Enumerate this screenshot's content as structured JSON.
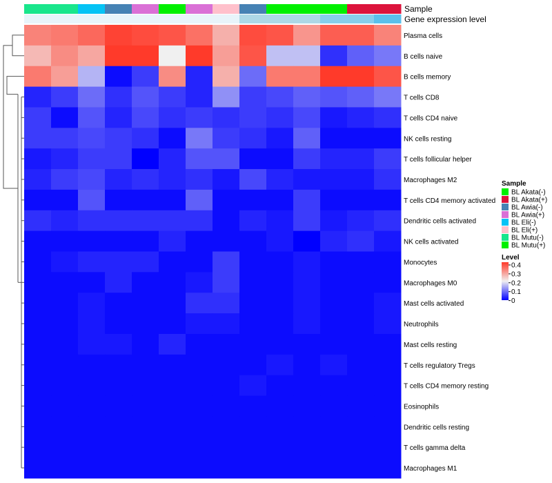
{
  "chart_data": {
    "type": "heatmap",
    "annotation_tracks": [
      "Sample",
      "Gene expression level"
    ],
    "sample_colors": [
      "#19e68c",
      "#19e68c",
      "#05c3f5",
      "#4682b4",
      "#da70d6",
      "#00f000",
      "#da70d6",
      "#ffc0cb",
      "#4682b4",
      "#00f000",
      "#00f000",
      "#00f000",
      "#dc143c",
      "#dc143c"
    ],
    "expression_colors": [
      "#e8f4fa",
      "#e8f4fa",
      "#e8f4fa",
      "#e8f4fa",
      "#e8f4fa",
      "#e8f4fa",
      "#e8f4fa",
      "#e8f4fa",
      "#add8e6",
      "#add8e6",
      "#add8e6",
      "#87ceeb",
      "#87ceeb",
      "#5bc0eb"
    ],
    "rows": [
      "Plasma cells",
      "B cells naive",
      "B cells memory",
      "T cells CD8",
      "T cells CD4 naive",
      "NK cells resting",
      "T cells follicular helper",
      "Macrophages M2",
      "T cells CD4 memory activated",
      "Dendritic cells activated",
      "NK cells activated",
      "Monocytes",
      "Macrophages M0",
      "Mast cells activated",
      "Neutrophils",
      "Mast cells resting",
      "T cells regulatory  Tregs",
      "T cells CD4 memory resting",
      "Eosinophils",
      "Dendritic cells resting",
      "T cells gamma delta",
      "Macrophages M1"
    ],
    "values": [
      [
        0.32,
        0.33,
        0.35,
        0.39,
        0.38,
        0.37,
        0.34,
        0.27,
        0.38,
        0.37,
        0.3,
        0.36,
        0.36,
        0.32
      ],
      [
        0.26,
        0.31,
        0.28,
        0.4,
        0.4,
        0.2,
        0.4,
        0.29,
        0.37,
        0.16,
        0.16,
        0.04,
        0.08,
        0.1
      ],
      [
        0.33,
        0.29,
        0.15,
        0.01,
        0.05,
        0.31,
        0.03,
        0.27,
        0.09,
        0.33,
        0.33,
        0.4,
        0.4,
        0.37
      ],
      [
        0.03,
        0.05,
        0.09,
        0.04,
        0.07,
        0.05,
        0.03,
        0.12,
        0.05,
        0.06,
        0.08,
        0.07,
        0.08,
        0.1
      ],
      [
        0.05,
        0.01,
        0.07,
        0.03,
        0.06,
        0.04,
        0.05,
        0.04,
        0.05,
        0.04,
        0.06,
        0.02,
        0.03,
        0.04
      ],
      [
        0.05,
        0.05,
        0.06,
        0.05,
        0.04,
        0.01,
        0.1,
        0.05,
        0.04,
        0.02,
        0.08,
        0.01,
        0.01,
        0.01
      ],
      [
        0.02,
        0.03,
        0.05,
        0.05,
        0.0,
        0.03,
        0.07,
        0.07,
        0.01,
        0.01,
        0.05,
        0.03,
        0.03,
        0.05
      ],
      [
        0.03,
        0.05,
        0.06,
        0.03,
        0.04,
        0.03,
        0.04,
        0.02,
        0.06,
        0.03,
        0.02,
        0.02,
        0.02,
        0.04
      ],
      [
        0.01,
        0.01,
        0.07,
        0.01,
        0.01,
        0.01,
        0.08,
        0.01,
        0.01,
        0.01,
        0.05,
        0.01,
        0.01,
        0.01
      ],
      [
        0.04,
        0.03,
        0.04,
        0.04,
        0.04,
        0.04,
        0.04,
        0.01,
        0.03,
        0.02,
        0.05,
        0.02,
        0.03,
        0.04
      ],
      [
        0.01,
        0.01,
        0.01,
        0.01,
        0.01,
        0.03,
        0.01,
        0.01,
        0.01,
        0.02,
        0.0,
        0.03,
        0.04,
        0.02
      ],
      [
        0.01,
        0.02,
        0.03,
        0.03,
        0.03,
        0.01,
        0.01,
        0.05,
        0.01,
        0.01,
        0.02,
        0.01,
        0.01,
        0.01
      ],
      [
        0.01,
        0.01,
        0.01,
        0.03,
        0.01,
        0.01,
        0.02,
        0.05,
        0.01,
        0.01,
        0.02,
        0.01,
        0.01,
        0.01
      ],
      [
        0.01,
        0.01,
        0.02,
        0.01,
        0.01,
        0.01,
        0.04,
        0.04,
        0.01,
        0.01,
        0.02,
        0.01,
        0.01,
        0.02
      ],
      [
        0.01,
        0.01,
        0.02,
        0.01,
        0.01,
        0.01,
        0.02,
        0.02,
        0.01,
        0.01,
        0.02,
        0.01,
        0.01,
        0.02
      ],
      [
        0.01,
        0.01,
        0.02,
        0.02,
        0.01,
        0.03,
        0.01,
        0.01,
        0.01,
        0.01,
        0.01,
        0.01,
        0.01,
        0.01
      ],
      [
        0.01,
        0.01,
        0.01,
        0.01,
        0.01,
        0.01,
        0.01,
        0.01,
        0.01,
        0.02,
        0.01,
        0.02,
        0.01,
        0.01
      ],
      [
        0.01,
        0.01,
        0.01,
        0.01,
        0.01,
        0.01,
        0.01,
        0.01,
        0.02,
        0.01,
        0.01,
        0.01,
        0.01,
        0.01
      ],
      [
        0.01,
        0.01,
        0.01,
        0.01,
        0.01,
        0.01,
        0.01,
        0.01,
        0.01,
        0.01,
        0.01,
        0.01,
        0.01,
        0.01
      ],
      [
        0.01,
        0.01,
        0.01,
        0.01,
        0.01,
        0.01,
        0.01,
        0.01,
        0.01,
        0.01,
        0.01,
        0.01,
        0.01,
        0.01
      ],
      [
        0.01,
        0.01,
        0.01,
        0.01,
        0.01,
        0.01,
        0.01,
        0.01,
        0.01,
        0.01,
        0.01,
        0.01,
        0.01,
        0.01
      ],
      [
        0.01,
        0.01,
        0.01,
        0.01,
        0.01,
        0.01,
        0.01,
        0.01,
        0.01,
        0.01,
        0.01,
        0.01,
        0.01,
        0.01
      ]
    ],
    "color_scale": {
      "min": 0,
      "max": 0.4,
      "low": "#0000ff",
      "mid": "#f0f0f0",
      "high": "#ff3a2a"
    },
    "legend_sample": {
      "title": "Sample",
      "entries": [
        {
          "label": "BL Akata(-)",
          "color": "#00f000"
        },
        {
          "label": "BL Akata(+)",
          "color": "#dc143c"
        },
        {
          "label": "BL Awia(-)",
          "color": "#4682b4"
        },
        {
          "label": "BL Awia(+)",
          "color": "#da70d6"
        },
        {
          "label": "BL Eli(-)",
          "color": "#05c3f5"
        },
        {
          "label": "BL Eli(+)",
          "color": "#ffc0cb"
        },
        {
          "label": "BL Mutu(-)",
          "color": "#19e68c"
        },
        {
          "label": "BL Mutu(+)",
          "color": "#00f000"
        }
      ]
    },
    "legend_level": {
      "title": "Level",
      "ticks": [
        "0.4",
        "0.3",
        "0.2",
        "0.1",
        "0"
      ]
    },
    "row_dendrogram": true,
    "legend_placement": "right"
  }
}
